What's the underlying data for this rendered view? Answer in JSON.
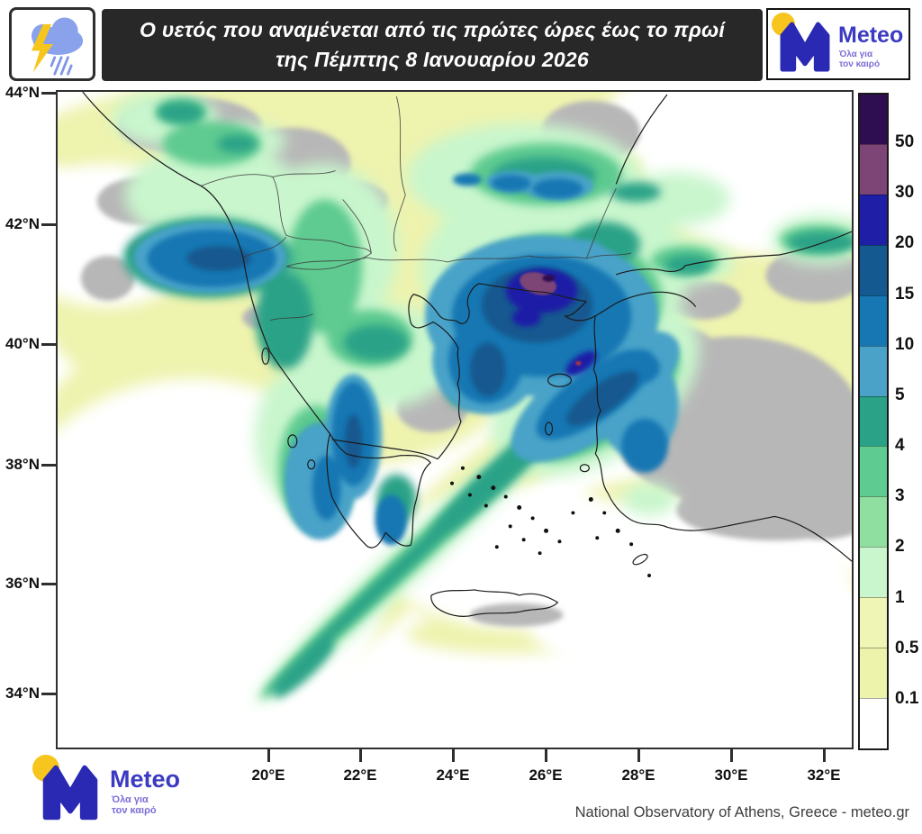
{
  "header": {
    "title_line1": "Ο υετός που αναμένεται από τις πρώτες ώρες έως το πρωί",
    "title_line2": "της Πέμπτης 8 Ιανουαρίου 2026"
  },
  "brand": {
    "name": "Meteo",
    "tagline_line1": "Όλα για",
    "tagline_line2": "τον καιρό",
    "brand_color": "#3b3ac2",
    "sun_color": "#f6c51e",
    "m_color": "#2a29b4"
  },
  "map": {
    "lat_labels": [
      "44°N",
      "42°N",
      "40°N",
      "38°N",
      "36°N",
      "34°N"
    ],
    "lon_labels": [
      "20°E",
      "22°E",
      "24°E",
      "26°E",
      "28°E",
      "30°E",
      "32°E"
    ]
  },
  "colorbar": {
    "labels_top_to_bottom": [
      "50",
      "30",
      "20",
      "15",
      "10",
      "5",
      "4",
      "3",
      "2",
      "1",
      "0.5",
      "0.1"
    ],
    "segment_colors_top_to_bottom": [
      "#2e0d51",
      "#7c4575",
      "#1e1fa6",
      "#14598f",
      "#1677b3",
      "#4aa2c8",
      "#2aa287",
      "#5ecb90",
      "#8fdfa0",
      "#c9f6cd",
      "#eef5b5",
      "#edf3ab",
      "#ffffff"
    ],
    "no_data_land_color": "#b7b7b7",
    "sea_color": "#ffffff"
  },
  "footer": {
    "credit": "National Observatory of Athens, Greece - meteo.gr"
  },
  "icons": {
    "header_icon": "storm-cloud-lightning-icon",
    "logo_icon": "meteo-m-sun-icon"
  }
}
